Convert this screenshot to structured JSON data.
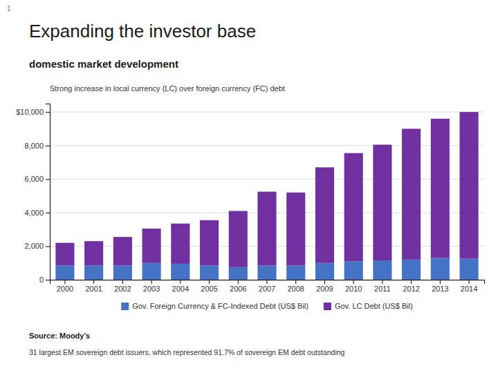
{
  "chart_data": {
    "type": "bar",
    "title": "Expanding the investor base",
    "subtitle": "domestic market development",
    "annotations": [
      "1",
      "Strong increase in local currency (LC) over foreign currency (FC) debt",
      "Source: Moody’s",
      "31 largest EM sovereign debt issuers, which represented 91.7% of sovereign EM debt outstanding"
    ],
    "categories": [
      "2000",
      "2001",
      "2002",
      "2003",
      "2004",
      "2005",
      "2006",
      "2007",
      "2008",
      "2009",
      "2010",
      "2011",
      "2012",
      "2013",
      "2014"
    ],
    "series": [
      {
        "name": "Gov. Foreign Currency & FC-Indexed Debt (US$ Bil)",
        "color": "#4472C4",
        "values": [
          850,
          850,
          850,
          1000,
          950,
          850,
          750,
          850,
          850,
          1000,
          1100,
          1150,
          1200,
          1300,
          1250
        ]
      },
      {
        "name": "Gov. LC Debt (US$ Bil)",
        "color": "#7030A0",
        "values": [
          1350,
          1450,
          1700,
          2050,
          2400,
          2700,
          3350,
          4400,
          4350,
          5700,
          6450,
          6900,
          7800,
          8300,
          8750
        ]
      }
    ],
    "stacked": true,
    "ylim": [
      0,
      10500
    ],
    "yticks": [
      0,
      {
        "value": 2000,
        "label": "2,000"
      },
      {
        "value": 4000,
        "label": "4,000"
      },
      {
        "value": 6000,
        "label": "6,000"
      },
      {
        "value": 8000,
        "label": "8,000"
      },
      {
        "value": 10000,
        "label": "$10,000"
      }
    ],
    "grid": true,
    "legend": "bottom"
  }
}
